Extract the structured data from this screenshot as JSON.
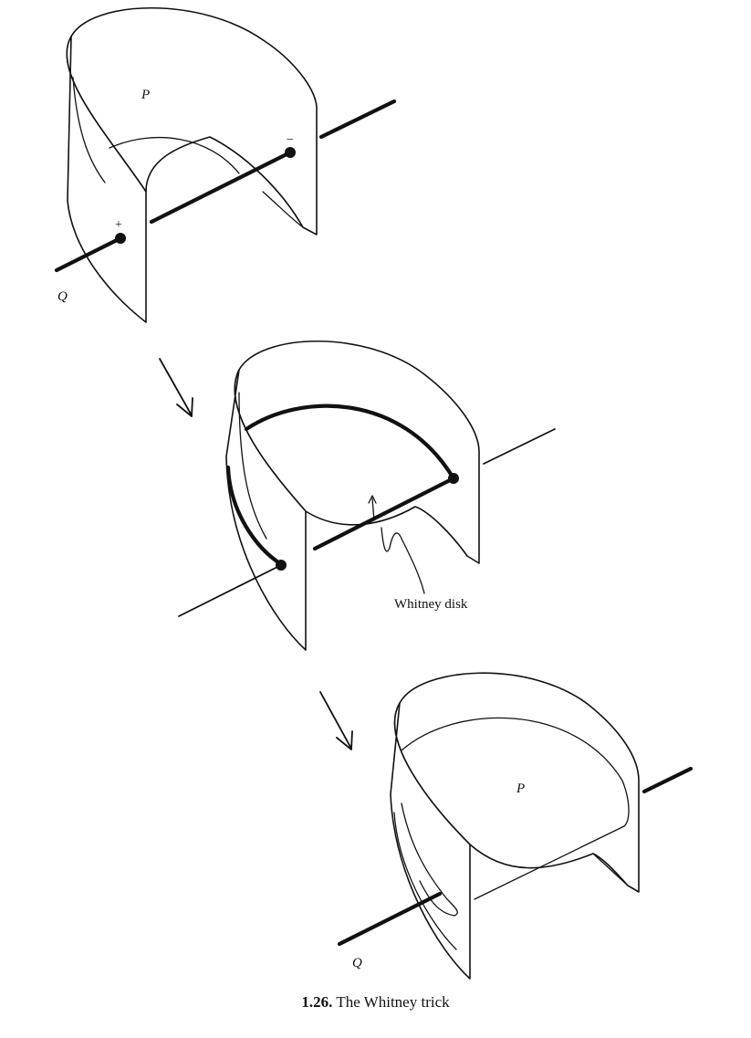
{
  "figure": {
    "stage1": {
      "sheet_label": "P",
      "line_label": "Q",
      "plus_sign": "+",
      "minus_sign": "−"
    },
    "stage2": {
      "annotation": "Whitney disk"
    },
    "stage3": {
      "sheet_label": "P",
      "line_label": "Q"
    }
  },
  "caption": {
    "number": "1.26.",
    "text": "The Whitney trick"
  }
}
